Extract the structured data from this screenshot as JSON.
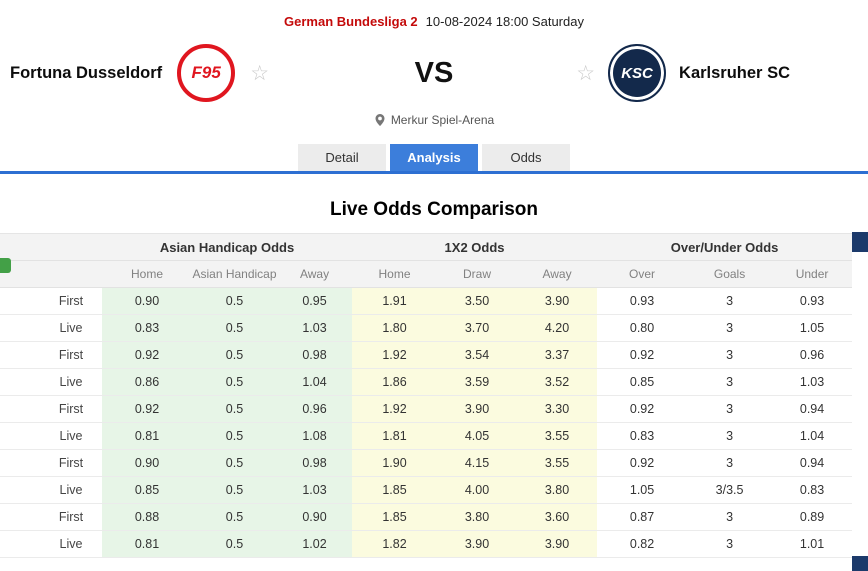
{
  "header": {
    "league": "German Bundesliga 2",
    "datetime": "10-08-2024 18:00 Saturday",
    "home_team": "Fortuna Dusseldorf",
    "away_team": "Karlsruher SC",
    "home_logo_text": "F95",
    "away_logo_text": "KSC",
    "vs": "VS",
    "venue": "Merkur Spiel-Arena"
  },
  "tabs": [
    {
      "label": "Detail",
      "active": false
    },
    {
      "label": "Analysis",
      "active": true
    },
    {
      "label": "Odds",
      "active": false
    }
  ],
  "section_title": "Live Odds Comparison",
  "odds_table": {
    "groups": [
      "Asian Handicap Odds",
      "1X2 Odds",
      "Over/Under Odds"
    ],
    "subheaders": [
      "Home",
      "Asian Handicap",
      "Away",
      "Home",
      "Draw",
      "Away",
      "Over",
      "Goals",
      "Under"
    ],
    "rows": [
      {
        "type": "First",
        "values": [
          "0.90",
          "0.5",
          "0.95",
          "1.91",
          "3.50",
          "3.90",
          "0.93",
          "3",
          "0.93"
        ]
      },
      {
        "type": "Live",
        "values": [
          "0.83",
          "0.5",
          "1.03",
          "1.80",
          "3.70",
          "4.20",
          "0.80",
          "3",
          "1.05"
        ]
      },
      {
        "type": "First",
        "values": [
          "0.92",
          "0.5",
          "0.98",
          "1.92",
          "3.54",
          "3.37",
          "0.92",
          "3",
          "0.96"
        ]
      },
      {
        "type": "Live",
        "values": [
          "0.86",
          "0.5",
          "1.04",
          "1.86",
          "3.59",
          "3.52",
          "0.85",
          "3",
          "1.03"
        ]
      },
      {
        "type": "First",
        "values": [
          "0.92",
          "0.5",
          "0.96",
          "1.92",
          "3.90",
          "3.30",
          "0.92",
          "3",
          "0.94"
        ]
      },
      {
        "type": "Live",
        "values": [
          "0.81",
          "0.5",
          "1.08",
          "1.81",
          "4.05",
          "3.55",
          "0.83",
          "3",
          "1.04"
        ]
      },
      {
        "type": "First",
        "values": [
          "0.90",
          "0.5",
          "0.98",
          "1.90",
          "4.15",
          "3.55",
          "0.92",
          "3",
          "0.94"
        ]
      },
      {
        "type": "Live",
        "values": [
          "0.85",
          "0.5",
          "1.03",
          "1.85",
          "4.00",
          "3.80",
          "1.05",
          "3/3.5",
          "0.83"
        ]
      },
      {
        "type": "First",
        "values": [
          "0.88",
          "0.5",
          "0.90",
          "1.85",
          "3.80",
          "3.60",
          "0.87",
          "3",
          "0.89"
        ]
      },
      {
        "type": "Live",
        "values": [
          "0.81",
          "0.5",
          "1.02",
          "1.82",
          "3.90",
          "3.90",
          "0.82",
          "3",
          "1.01"
        ]
      }
    ]
  },
  "colors": {
    "league_red": "#c40a0a",
    "tab_active_blue": "#3c7edb",
    "underline_blue": "#2d6fd2",
    "asian_handicap_bg": "#e7f5e7",
    "one_x_two_bg": "#fbfbdf",
    "home_logo_red": "#e0161f",
    "away_logo_navy": "#13294b",
    "partial_icon_green": "#43a047",
    "edge_artifact_navy": "#1c3a6b"
  }
}
